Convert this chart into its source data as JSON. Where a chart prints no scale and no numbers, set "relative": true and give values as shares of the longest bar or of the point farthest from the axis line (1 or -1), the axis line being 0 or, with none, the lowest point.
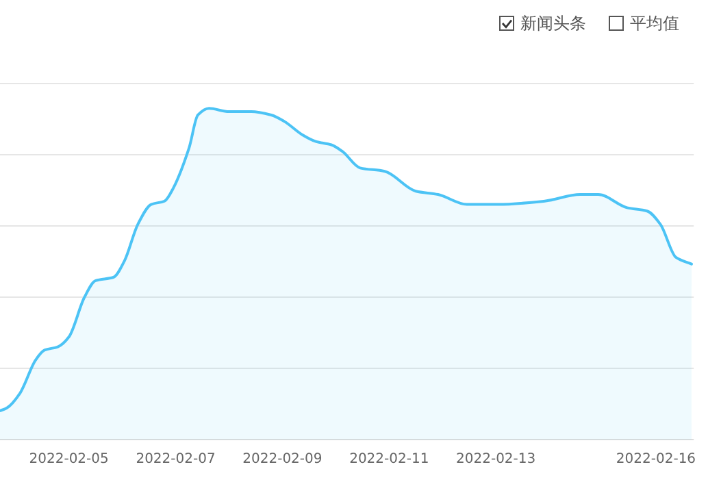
{
  "chart_data": {
    "type": "area",
    "relative": true,
    "grid": "y",
    "legend": "top right",
    "marker": "none",
    "x": [
      "2022-02-03T17:00",
      "2022-02-03T20:00",
      "2022-02-04T02:00",
      "2022-02-04T09:00",
      "2022-02-04T13:00",
      "2022-02-04T19:00",
      "2022-02-05T00:00",
      "2022-02-05T07:00",
      "2022-02-05T12:00",
      "2022-02-05T20:00",
      "2022-02-06T01:00",
      "2022-02-06T07:00",
      "2022-02-06T13:00",
      "2022-02-06T19:00",
      "2022-02-06T23:00",
      "2022-02-07T06:00",
      "2022-02-07T10:00",
      "2022-02-07T15:00",
      "2022-02-08T00:00",
      "2022-02-08T10:00",
      "2022-02-08T19:00",
      "2022-02-09T01:00",
      "2022-02-09T09:00",
      "2022-02-09T15:00",
      "2022-02-09T22:00",
      "2022-02-10T03:00",
      "2022-02-10T11:00",
      "2022-02-10T22:00",
      "2022-02-11T12:00",
      "2022-02-11T22:00",
      "2022-02-12T11:00",
      "2022-02-13T01:00",
      "2022-02-13T22:00",
      "2022-02-14T14:00",
      "2022-02-14T22:00",
      "2022-02-15T11:00",
      "2022-02-15T20:00",
      "2022-02-16T02:00",
      "2022-02-16T09:00",
      "2022-02-16T16:00"
    ],
    "xlim": [
      "2022-02-03T17:00",
      "2022-02-16T17:00"
    ],
    "xticks": [
      "2022-02-05",
      "2022-02-07",
      "2022-02-09",
      "2022-02-11",
      "2022-02-13",
      "2022-02-16"
    ],
    "series": [
      {
        "name": "新闻头条",
        "color": "#4cc3f5",
        "values": [
          0.087,
          0.095,
          0.14,
          0.24,
          0.27,
          0.28,
          0.31,
          0.43,
          0.48,
          0.49,
          0.54,
          0.65,
          0.71,
          0.72,
          0.76,
          0.88,
          0.98,
          1,
          0.99,
          0.99,
          0.98,
          0.96,
          0.92,
          0.9,
          0.89,
          0.87,
          0.82,
          0.81,
          0.75,
          0.74,
          0.71,
          0.71,
          0.72,
          0.74,
          0.74,
          0.7,
          0.69,
          0.65,
          0.55,
          0.53
        ]
      }
    ],
    "annotations": [
      "平均值"
    ]
  }
}
